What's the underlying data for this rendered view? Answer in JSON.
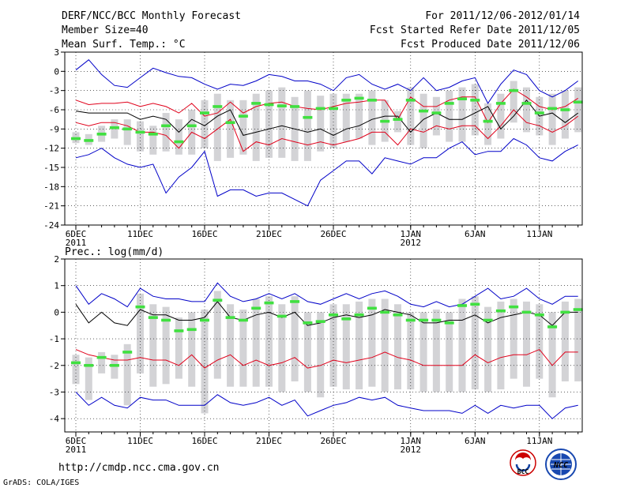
{
  "header": {
    "title": "DERF/NCC/BCC Monthly Forecast",
    "member_size": "Member Size=40",
    "variable": "Mean Surf. Temp.: °C",
    "period": "For 2011/12/06-2012/01/14",
    "refer_date": "Fcst Started Refer Date 2011/12/05",
    "produced_date": "Fcst Produced Date 2011/12/06"
  },
  "footer": {
    "url": "http://cmdp.ncc.cma.gov.cn",
    "grads": "GrADS: COLA/IGES",
    "logo_bcc": "BCC",
    "logo_ncc": "NCC"
  },
  "colors": {
    "envelope": "#0000c8",
    "spread": "#e0001a",
    "mean": "#000000",
    "median": "#40e040",
    "box": "#d3d3d6",
    "grid": "#000000"
  },
  "chart_data": [
    {
      "type": "box-ensemble",
      "title": "Mean Surf. Temp.: °C",
      "ylim": [
        -24,
        3
      ],
      "yticks": [
        3,
        0,
        -3,
        -6,
        -9,
        -12,
        -15,
        -18,
        -21,
        -24
      ],
      "x_tick_labels": [
        {
          "day": 0,
          "label": "6DEC",
          "sub": "2011"
        },
        {
          "day": 5,
          "label": "11DEC",
          "sub": ""
        },
        {
          "day": 10,
          "label": "16DEC",
          "sub": ""
        },
        {
          "day": 15,
          "label": "21DEC",
          "sub": ""
        },
        {
          "day": 20,
          "label": "26DEC",
          "sub": ""
        },
        {
          "day": 26,
          "label": "1JAN",
          "sub": "2012"
        },
        {
          "day": 31,
          "label": "6JAN",
          "sub": ""
        },
        {
          "day": 36,
          "label": "11JAN",
          "sub": ""
        }
      ],
      "days": 40,
      "series": [
        {
          "name": "max",
          "values": [
            0.2,
            1.8,
            -0.5,
            -2.2,
            -2.5,
            -1.0,
            0.5,
            -0.2,
            -0.8,
            -1.0,
            -2.0,
            -2.8,
            -2.0,
            -2.2,
            -1.5,
            -0.5,
            -0.8,
            -1.5,
            -1.5,
            -2.0,
            -3.0,
            -1.0,
            -0.5,
            -2.0,
            -2.8,
            -2.0,
            -3.0,
            -1.0,
            -3.0,
            -2.5,
            -1.5,
            -1.0,
            -5.0,
            -2.0,
            0.2,
            -0.5,
            -3.0,
            -4.0,
            -3.0,
            -1.5
          ]
        },
        {
          "name": "upper",
          "values": [
            -4.5,
            -5.2,
            -5.0,
            -5.0,
            -4.8,
            -5.5,
            -5.0,
            -5.5,
            -6.5,
            -5.0,
            -7.0,
            -6.5,
            -4.8,
            -6.5,
            -5.5,
            -5.0,
            -4.8,
            -5.5,
            -5.8,
            -6.0,
            -5.5,
            -5.0,
            -4.8,
            -4.5,
            -4.5,
            -7.5,
            -4.0,
            -5.5,
            -5.5,
            -4.5,
            -4.0,
            -4.0,
            -8.0,
            -5.0,
            -2.8,
            -4.0,
            -5.5,
            -6.0,
            -5.5,
            -4.2
          ]
        },
        {
          "name": "mean",
          "values": [
            -6.2,
            -6.5,
            -6.5,
            -6.5,
            -6.5,
            -7.5,
            -7.0,
            -7.5,
            -9.5,
            -7.5,
            -8.5,
            -7.0,
            -6.0,
            -10.0,
            -9.5,
            -9.0,
            -8.5,
            -9.0,
            -9.5,
            -9.0,
            -10.0,
            -9.0,
            -8.5,
            -7.5,
            -7.0,
            -7.0,
            -9.5,
            -7.5,
            -6.5,
            -7.5,
            -7.5,
            -6.5,
            -5.5,
            -9.0,
            -7.0,
            -4.5,
            -7.0,
            -6.5,
            -8.0,
            -6.5
          ]
        },
        {
          "name": "lower",
          "values": [
            -8.0,
            -8.5,
            -8.0,
            -8.0,
            -8.5,
            -9.5,
            -9.5,
            -10.0,
            -12.0,
            -9.5,
            -10.5,
            -9.0,
            -7.5,
            -12.5,
            -11.0,
            -11.5,
            -10.5,
            -11.0,
            -11.5,
            -11.0,
            -11.5,
            -11.0,
            -10.5,
            -9.5,
            -9.5,
            -11.5,
            -9.0,
            -9.5,
            -8.5,
            -9.0,
            -8.5,
            -8.5,
            -10.5,
            -8.5,
            -6.0,
            -8.0,
            -8.5,
            -9.5,
            -8.5,
            -7.0
          ]
        },
        {
          "name": "min",
          "values": [
            -13.5,
            -13.0,
            -12.0,
            -13.5,
            -14.5,
            -15.0,
            -14.5,
            -19.0,
            -16.5,
            -15.0,
            -12.5,
            -19.5,
            -18.5,
            -18.5,
            -19.5,
            -19.0,
            -19.0,
            -20.0,
            -21.0,
            -17.0,
            -15.5,
            -14.0,
            -14.0,
            -16.0,
            -13.5,
            -14.0,
            -14.5,
            -13.5,
            -13.5,
            -12.0,
            -11.0,
            -13.0,
            -12.5,
            -12.5,
            -10.5,
            -11.5,
            -13.5,
            -14.0,
            -12.5,
            -11.5
          ]
        },
        {
          "name": "median",
          "values": [
            -10.5,
            -10.8,
            -9.8,
            -8.8,
            -9.0,
            -9.5,
            -9.8,
            -8.5,
            -11.0,
            -8.5,
            -6.5,
            -5.5,
            -8.0,
            -7.0,
            -5.0,
            -5.2,
            -5.4,
            -5.5,
            -7.2,
            -5.8,
            -5.8,
            -4.5,
            -4.2,
            -4.5,
            -7.8,
            -7.5,
            -4.5,
            -6.2,
            -6.5,
            -5.0,
            -4.3,
            -4.5,
            -7.8,
            -5.0,
            -3.0,
            -5.0,
            -6.5,
            -5.8,
            -6.0,
            -4.8
          ]
        },
        {
          "name": "box_top",
          "values": [
            -9.5,
            -9.8,
            -8.5,
            -7.5,
            -7.5,
            -7.8,
            -8.5,
            -6.5,
            -7.5,
            -6.0,
            -4.5,
            -3.5,
            -4.5,
            -4.5,
            -3.5,
            -3.0,
            -2.5,
            -4.0,
            -3.0,
            -3.8,
            -3.5,
            -3.5,
            -3.5,
            -3.0,
            -4.5,
            -6.2,
            -2.5,
            -3.5,
            -4.0,
            -3.0,
            -2.5,
            -2.0,
            -5.0,
            -3.5,
            -1.5,
            -2.5,
            -4.0,
            -3.5,
            -3.0,
            -2.5
          ]
        },
        {
          "name": "box_bottom",
          "values": [
            -11.2,
            -11.5,
            -11.0,
            -10.5,
            -11.5,
            -12.5,
            -13.0,
            -12.5,
            -13.0,
            -13.0,
            -12.0,
            -14.0,
            -13.5,
            -13.0,
            -14.0,
            -13.5,
            -13.5,
            -14.0,
            -14.0,
            -12.5,
            -12.0,
            -11.0,
            -10.5,
            -11.5,
            -11.0,
            -9.5,
            -11.5,
            -12.0,
            -10.0,
            -11.0,
            -11.0,
            -10.0,
            -11.5,
            -10.5,
            -8.0,
            -9.5,
            -10.0,
            -11.5,
            -10.5,
            -9.5
          ]
        }
      ]
    },
    {
      "type": "box-ensemble",
      "title": "Prec.: log(mm/d)",
      "ylim": [
        -4.5,
        2
      ],
      "yticks": [
        2,
        1,
        0,
        -1,
        -2,
        -3,
        -4
      ],
      "x_tick_labels": [
        {
          "day": 0,
          "label": "6DEC",
          "sub": "2011"
        },
        {
          "day": 5,
          "label": "11DEC",
          "sub": ""
        },
        {
          "day": 10,
          "label": "16DEC",
          "sub": ""
        },
        {
          "day": 15,
          "label": "21DEC",
          "sub": ""
        },
        {
          "day": 20,
          "label": "26DEC",
          "sub": ""
        },
        {
          "day": 26,
          "label": "1JAN",
          "sub": "2012"
        },
        {
          "day": 31,
          "label": "6JAN",
          "sub": ""
        },
        {
          "day": 36,
          "label": "11JAN",
          "sub": ""
        }
      ],
      "days": 40,
      "series": [
        {
          "name": "max",
          "values": [
            1.0,
            0.3,
            0.7,
            0.5,
            0.2,
            0.9,
            0.6,
            0.5,
            0.5,
            0.4,
            0.4,
            1.1,
            0.6,
            0.4,
            0.5,
            0.7,
            0.5,
            0.7,
            0.4,
            0.3,
            0.5,
            0.7,
            0.5,
            0.7,
            0.8,
            0.6,
            0.3,
            0.2,
            0.4,
            0.2,
            0.3,
            0.6,
            0.9,
            0.5,
            0.6,
            0.9,
            0.5,
            0.3,
            0.6,
            0.6
          ]
        },
        {
          "name": "mean",
          "values": [
            0.3,
            -0.4,
            0.0,
            -0.4,
            -0.5,
            0.1,
            -0.1,
            -0.1,
            -0.3,
            -0.3,
            -0.2,
            0.4,
            -0.2,
            -0.3,
            -0.1,
            0.0,
            -0.2,
            0.0,
            -0.5,
            -0.4,
            -0.2,
            -0.1,
            -0.2,
            -0.1,
            0.1,
            0.0,
            -0.1,
            -0.4,
            -0.4,
            -0.3,
            -0.3,
            -0.1,
            -0.4,
            -0.2,
            -0.1,
            0.0,
            -0.1,
            -0.5,
            0.0,
            0.0
          ]
        },
        {
          "name": "lower",
          "values": [
            -1.4,
            -1.6,
            -1.7,
            -1.8,
            -1.8,
            -1.7,
            -1.8,
            -1.8,
            -2.0,
            -1.6,
            -2.1,
            -1.8,
            -1.6,
            -2.0,
            -1.8,
            -2.0,
            -1.9,
            -1.7,
            -2.1,
            -2.0,
            -1.8,
            -1.9,
            -1.8,
            -1.7,
            -1.5,
            -1.7,
            -1.8,
            -2.0,
            -2.0,
            -2.0,
            -2.0,
            -1.6,
            -1.9,
            -1.7,
            -1.6,
            -1.6,
            -1.4,
            -2.0,
            -1.5,
            -1.5
          ]
        },
        {
          "name": "min",
          "values": [
            -3.0,
            -3.5,
            -3.2,
            -3.5,
            -3.6,
            -3.2,
            -3.3,
            -3.3,
            -3.5,
            -3.5,
            -3.5,
            -3.1,
            -3.4,
            -3.5,
            -3.4,
            -3.2,
            -3.5,
            -3.3,
            -3.9,
            -3.7,
            -3.5,
            -3.4,
            -3.2,
            -3.3,
            -3.2,
            -3.5,
            -3.6,
            -3.7,
            -3.7,
            -3.7,
            -3.8,
            -3.5,
            -3.8,
            -3.5,
            -3.6,
            -3.5,
            -3.5,
            -4.0,
            -3.6,
            -3.5
          ]
        },
        {
          "name": "median",
          "values": [
            -1.9,
            -2.0,
            -1.7,
            -2.0,
            -1.5,
            0.2,
            -0.2,
            -0.3,
            -0.7,
            -0.65,
            -0.3,
            0.45,
            -0.2,
            -0.3,
            0.15,
            0.35,
            -0.15,
            0.4,
            -0.4,
            -0.35,
            -0.1,
            -0.25,
            -0.1,
            0.15,
            0.0,
            -0.1,
            -0.3,
            -0.3,
            -0.3,
            -0.4,
            0.25,
            0.3,
            -0.3,
            0.05,
            0.2,
            0.0,
            -0.1,
            -0.55,
            0.0,
            0.1
          ]
        },
        {
          "name": "box_top",
          "values": [
            -1.6,
            -1.7,
            -1.5,
            -1.6,
            -1.2,
            0.7,
            0.3,
            0.2,
            -0.2,
            0.0,
            0.1,
            0.8,
            0.3,
            0.1,
            0.5,
            0.6,
            0.3,
            0.6,
            0.0,
            0.0,
            0.3,
            0.3,
            0.4,
            0.5,
            0.5,
            0.3,
            0.0,
            0.0,
            0.1,
            0.0,
            0.5,
            0.6,
            0.2,
            0.4,
            0.5,
            0.4,
            0.3,
            0.0,
            0.4,
            0.5
          ]
        },
        {
          "name": "box_bottom",
          "values": [
            -2.7,
            -3.3,
            -2.3,
            -2.5,
            -3.5,
            -2.3,
            -2.8,
            -2.7,
            -2.5,
            -2.8,
            -3.8,
            -2.5,
            -2.8,
            -2.8,
            -2.8,
            -2.8,
            -3.0,
            -2.6,
            -3.0,
            -3.2,
            -2.8,
            -2.9,
            -2.9,
            -2.8,
            -3.0,
            -2.9,
            -2.9,
            -3.0,
            -3.0,
            -3.0,
            -3.0,
            -2.9,
            -3.0,
            -2.9,
            -2.5,
            -2.8,
            -2.5,
            -3.2,
            -2.6,
            -2.6
          ]
        }
      ]
    }
  ]
}
